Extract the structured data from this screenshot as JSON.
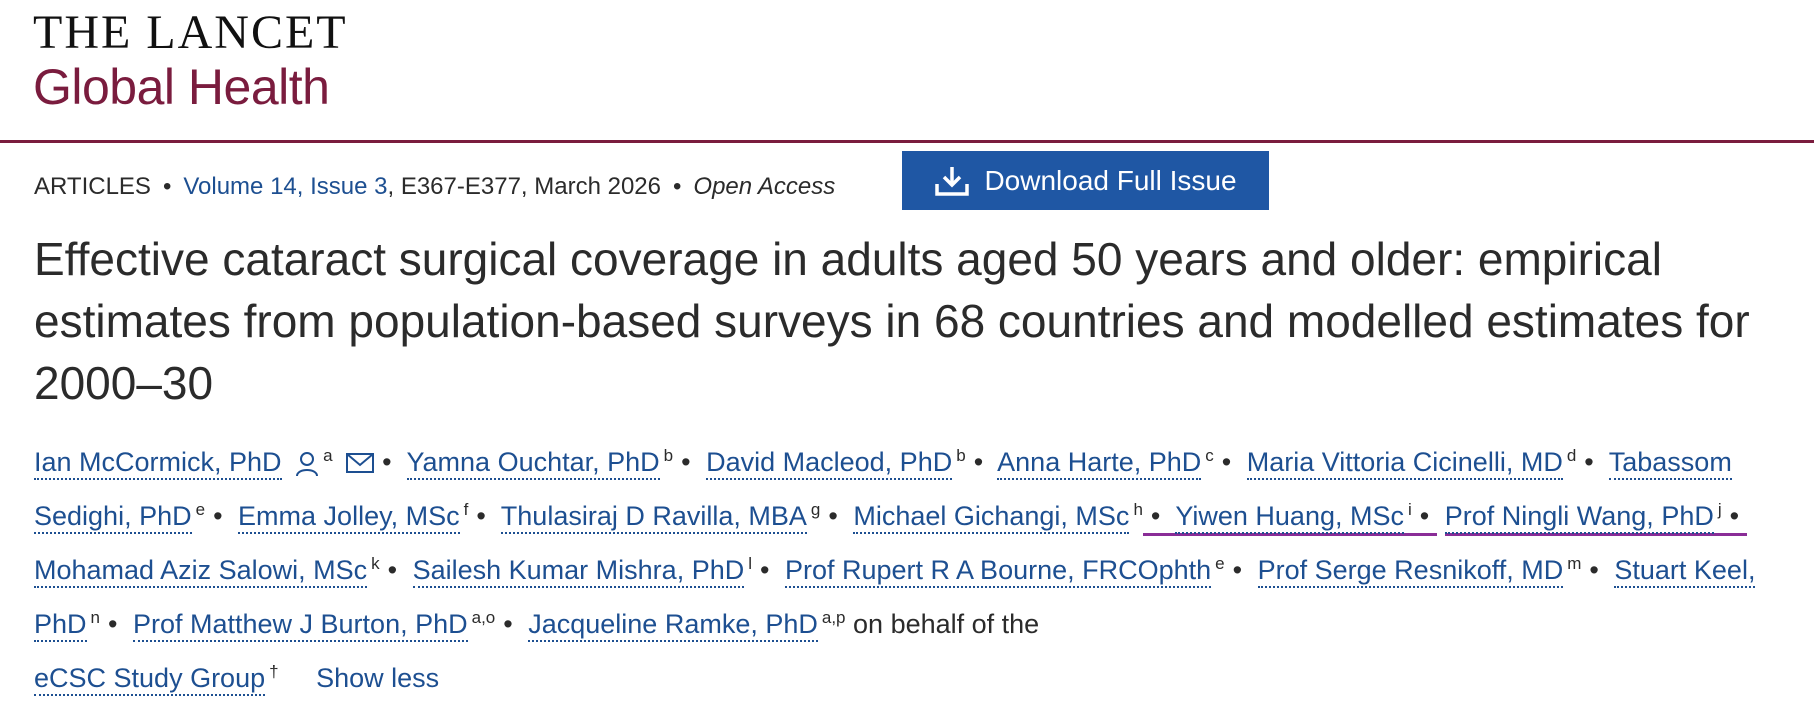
{
  "brand": {
    "line1": "THE LANCET",
    "line2": "Global Health",
    "color": "#7a1c3e"
  },
  "meta": {
    "type": "ARTICLES",
    "volume": "Volume 14, Issue 3",
    "pages": ", E367-E377, March 2026",
    "access": "Open Access"
  },
  "download_button": {
    "label": "Download Full Issue",
    "icon": "download-icon",
    "color": "#1f57a4"
  },
  "article_title": "Effective cataract surgical coverage in adults aged 50 years and older: empirical estimates from population-based surveys in 68 countries and modelled estimates for 2000–30",
  "authors": [
    {
      "name": "Ian McCormick, PhD",
      "sup": "a"
    },
    {
      "name": "Yamna Ouchtar, PhD",
      "sup": "b"
    },
    {
      "name": "David Macleod, PhD",
      "sup": "b"
    },
    {
      "name": "Anna Harte, PhD",
      "sup": "c"
    },
    {
      "name": "Maria Vittoria Cicinelli, MD",
      "sup": "d"
    },
    {
      "name": "Tabassom Sedighi, PhD",
      "sup": "e"
    },
    {
      "name": "Emma Jolley, MSc",
      "sup": "f"
    },
    {
      "name": "Thulasiraj D Ravilla, MBA",
      "sup": "g"
    },
    {
      "name": "Michael Gichangi, MSc",
      "sup": "h"
    },
    {
      "name": "Yiwen Huang, MSc",
      "sup": "i"
    },
    {
      "name": "Prof Ningli Wang, PhD",
      "sup": "j"
    },
    {
      "name": "Mohamad Aziz Salowi, MSc",
      "sup": "k"
    },
    {
      "name": "Sailesh Kumar Mishra, PhD",
      "sup": "l"
    },
    {
      "name": "Prof Rupert R A Bourne, FRCOphth",
      "sup": "e"
    },
    {
      "name": "Prof Serge Resnikoff, MD",
      "sup": "m"
    },
    {
      "name": "Stuart Keel, PhD",
      "sup": "n"
    },
    {
      "name": "Prof Matthew J Burton, PhD",
      "sup": "a,o"
    },
    {
      "name": "Jacqueline Ramke, PhD",
      "sup": "a,p"
    }
  ],
  "on_behalf": "on behalf of the",
  "group": {
    "name": "eCSC Study Group",
    "sup": "†"
  },
  "show_less": "Show less",
  "bullet": "•"
}
